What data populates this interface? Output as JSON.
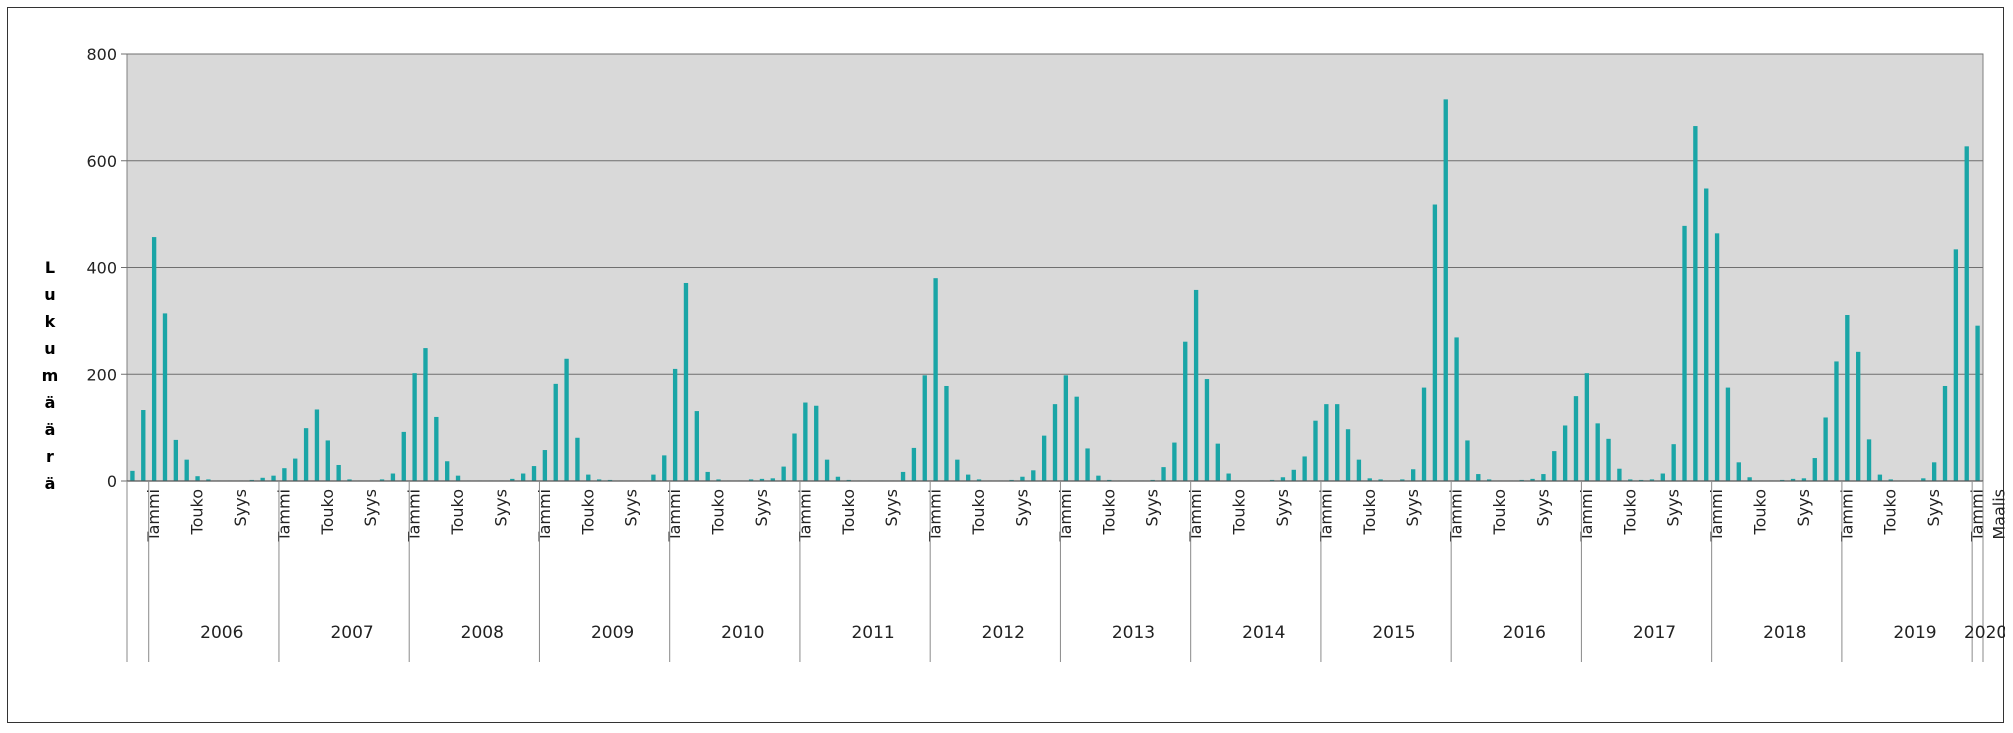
{
  "chart_data": {
    "type": "bar",
    "title": "",
    "xlabel": "",
    "ylabel": "Lukumäärä",
    "ylim": [
      0,
      800
    ],
    "yticks": [
      0,
      200,
      400,
      600,
      800
    ],
    "grid": true,
    "bar_color": "#1aa5a6",
    "plot_bg": "#d9d9d9",
    "years": [
      "2006",
      "2007",
      "2008",
      "2009",
      "2010",
      "2011",
      "2012",
      "2013",
      "2014",
      "2015",
      "2016",
      "2017",
      "2018",
      "2019",
      "2020"
    ],
    "month_tick_labels": [
      "Tammi",
      "Touko",
      "Syys",
      "Maalis"
    ],
    "series": [
      {
        "values": [
          19,
          133,
          457,
          314,
          77,
          40,
          9,
          3,
          1,
          1,
          1,
          2,
          6,
          10,
          24,
          42,
          99,
          134,
          76,
          30,
          3,
          1,
          1,
          3,
          14,
          92,
          202,
          249,
          120,
          37,
          10,
          1,
          1,
          1,
          1,
          4,
          14,
          28,
          58,
          182,
          229,
          81,
          12,
          3,
          2,
          1,
          1,
          1,
          12,
          48,
          210,
          371,
          131,
          17,
          3,
          1,
          1,
          3,
          4,
          5,
          27,
          89,
          147,
          141,
          40,
          8,
          2,
          1,
          1,
          1,
          1,
          17,
          62,
          198,
          380,
          178,
          40,
          12,
          3,
          1,
          1,
          2,
          8,
          20,
          85,
          144,
          198,
          158,
          61,
          10,
          2,
          1,
          1,
          1,
          2,
          26,
          72,
          261,
          358,
          191,
          70,
          14,
          1,
          1,
          1,
          2,
          7,
          21,
          46,
          113,
          144,
          144,
          97,
          40,
          5,
          3,
          1,
          3,
          22,
          175,
          518,
          715,
          269,
          76,
          13,
          3,
          1,
          1,
          2,
          4,
          13,
          56,
          104,
          159,
          202,
          108,
          79,
          23,
          3,
          2,
          3,
          14,
          69,
          478,
          665,
          548,
          464,
          175,
          35,
          7,
          1,
          1,
          2,
          4,
          5,
          43,
          119,
          224,
          311,
          242,
          78,
          12,
          3,
          1,
          1,
          5,
          35,
          178,
          434,
          627,
          291
        ]
      }
    ]
  }
}
